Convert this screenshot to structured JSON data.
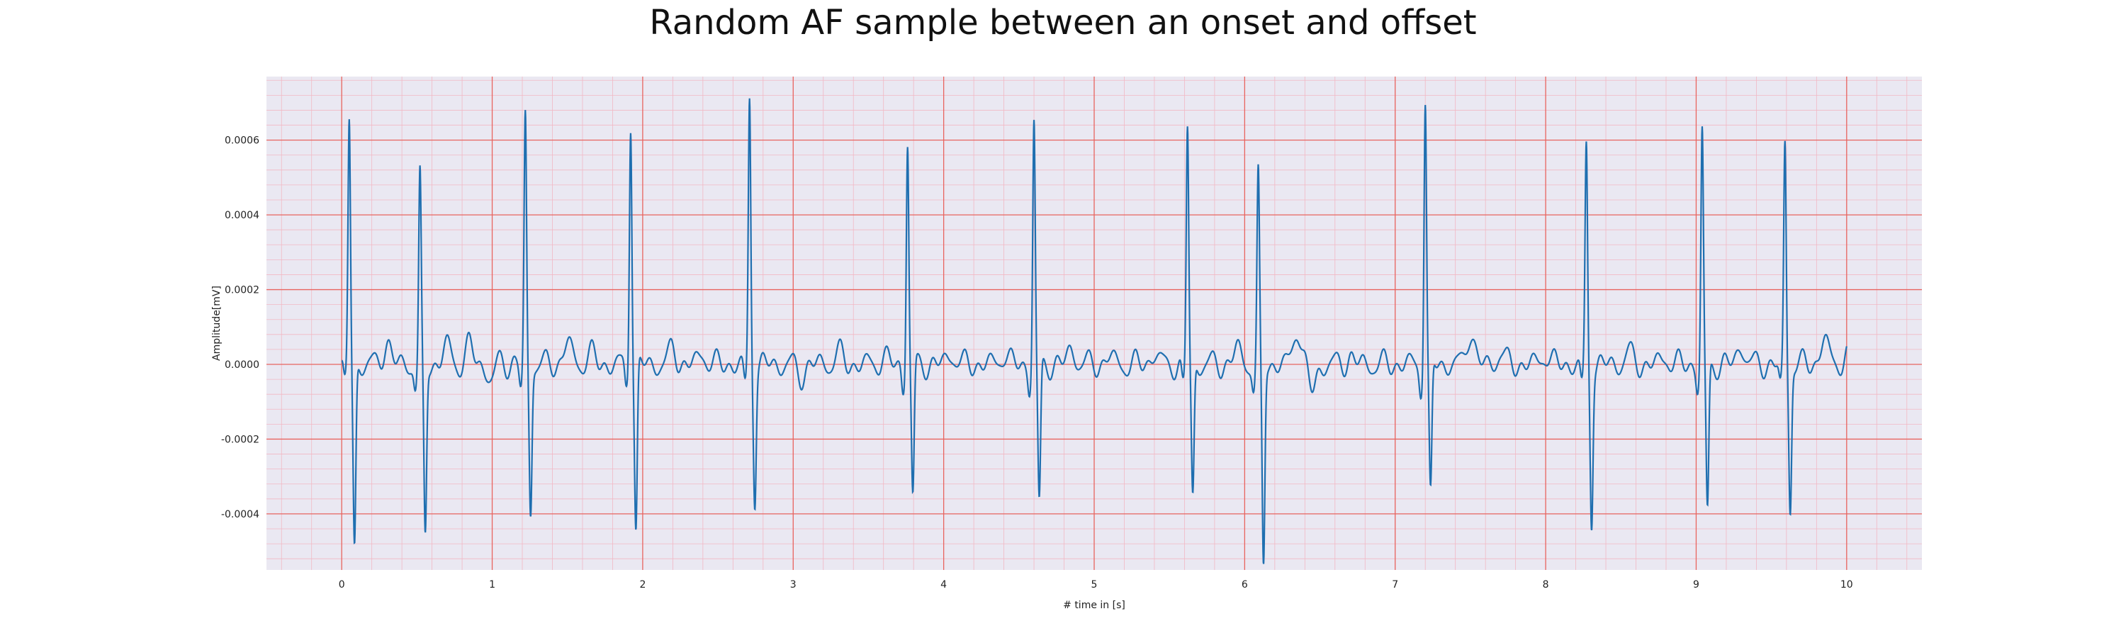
{
  "chart_data": {
    "type": "line",
    "title": "Random AF sample between an onset and offset",
    "xlabel": "# time in [s]",
    "ylabel": "Amplitude[mV]",
    "xlim": [
      -0.5,
      10.5
    ],
    "ylim": [
      -0.00055,
      0.00077
    ],
    "x_ticks": [
      0,
      1,
      2,
      3,
      4,
      5,
      6,
      7,
      8,
      9,
      10
    ],
    "x_tick_labels": [
      "0",
      "1",
      "2",
      "3",
      "4",
      "5",
      "6",
      "7",
      "8",
      "9",
      "10"
    ],
    "y_ticks": [
      -0.0004,
      -0.0002,
      0.0,
      0.0002,
      0.0004,
      0.0006
    ],
    "y_tick_labels": [
      "-0.0004",
      "-0.0002",
      "0.0000",
      "0.0002",
      "0.0004",
      "0.0006"
    ],
    "grid": true,
    "grid_major_color": "#e8645f",
    "grid_minor_color": "#f2b8c4",
    "background_color": "#eae8f2",
    "line_color": "#1f6fb0",
    "beats": [
      {
        "t": 0.05,
        "peak": 0.00066,
        "trough": -0.00049
      },
      {
        "t": 0.52,
        "peak": 0.0005,
        "trough": -0.00046
      },
      {
        "t": 1.22,
        "peak": 0.00066,
        "trough": -0.00039
      },
      {
        "t": 1.92,
        "peak": 0.00066,
        "trough": -0.00045
      },
      {
        "t": 2.71,
        "peak": 0.00071,
        "trough": -0.00035
      },
      {
        "t": 3.76,
        "peak": 0.0006,
        "trough": -0.00036
      },
      {
        "t": 4.6,
        "peak": 0.00065,
        "trough": -0.00038
      },
      {
        "t": 5.62,
        "peak": 0.00064,
        "trough": -0.00036
      },
      {
        "t": 6.09,
        "peak": 0.0005,
        "trough": -0.00054
      },
      {
        "t": 7.2,
        "peak": 0.00071,
        "trough": -0.00036
      },
      {
        "t": 8.27,
        "peak": 0.00058,
        "trough": -0.00041
      },
      {
        "t": 9.04,
        "peak": 0.00062,
        "trough": -0.0004
      },
      {
        "t": 9.59,
        "peak": 0.00059,
        "trough": -0.00038
      }
    ],
    "baseline_bumps": [
      {
        "t": 0.3,
        "v": 6e-05
      },
      {
        "t": 0.7,
        "v": 5e-05
      },
      {
        "t": 0.85,
        "v": 5e-05
      },
      {
        "t": 1.0,
        "v": -5e-05
      },
      {
        "t": 1.05,
        "v": 2e-05
      },
      {
        "t": 1.5,
        "v": 6e-05
      },
      {
        "t": 1.65,
        "v": 3e-05
      },
      {
        "t": 2.2,
        "v": 4e-05
      },
      {
        "t": 2.4,
        "v": 3e-05
      },
      {
        "t": 3.05,
        "v": -3e-05
      },
      {
        "t": 3.3,
        "v": 3e-05
      },
      {
        "t": 3.6,
        "v": 2e-05
      },
      {
        "t": 4.05,
        "v": 3e-05
      },
      {
        "t": 4.4,
        "v": 3e-05
      },
      {
        "t": 4.85,
        "v": 4e-05
      },
      {
        "t": 5.1,
        "v": 2e-05
      },
      {
        "t": 5.4,
        "v": 3e-05
      },
      {
        "t": 5.95,
        "v": 4e-05
      },
      {
        "t": 6.35,
        "v": 0.0001
      },
      {
        "t": 6.45,
        "v": -7e-05
      },
      {
        "t": 6.7,
        "v": 2e-05
      },
      {
        "t": 7.5,
        "v": 9e-05
      },
      {
        "t": 7.7,
        "v": 3e-05
      },
      {
        "t": 8.0,
        "v": 3e-05
      },
      {
        "t": 8.55,
        "v": 3e-05
      },
      {
        "t": 8.8,
        "v": 2e-05
      },
      {
        "t": 9.3,
        "v": 5e-05
      },
      {
        "t": 9.85,
        "v": 7e-05
      },
      {
        "t": 10.0,
        "v": 3e-05
      }
    ],
    "x_range": [
      0.0,
      10.0
    ]
  }
}
